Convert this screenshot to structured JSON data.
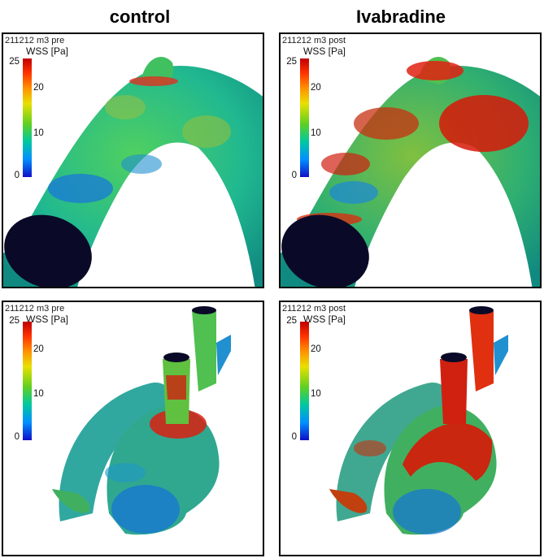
{
  "columns": {
    "left_title": "control",
    "right_title": "Ivabradine"
  },
  "panels": [
    {
      "id": "top-left",
      "sample_label": "211212 m3 pre",
      "units": "WSS [Pa]"
    },
    {
      "id": "top-right",
      "sample_label": "211212 m3 post",
      "units": "WSS [Pa]"
    },
    {
      "id": "bottom-left",
      "sample_label": "211212 m3 pre",
      "units": "WSS [Pa]"
    },
    {
      "id": "bottom-right",
      "sample_label": "211212 m3 post",
      "units": "WSS [Pa]"
    }
  ],
  "colorbar": {
    "ticks": {
      "t25": "25",
      "t20": "20",
      "t10": "10",
      "t0": "0"
    },
    "colors": [
      "#c00000",
      "#ff3000",
      "#ff9000",
      "#e8e000",
      "#60d020",
      "#00c8a0",
      "#0090ff",
      "#1010c8"
    ]
  }
}
